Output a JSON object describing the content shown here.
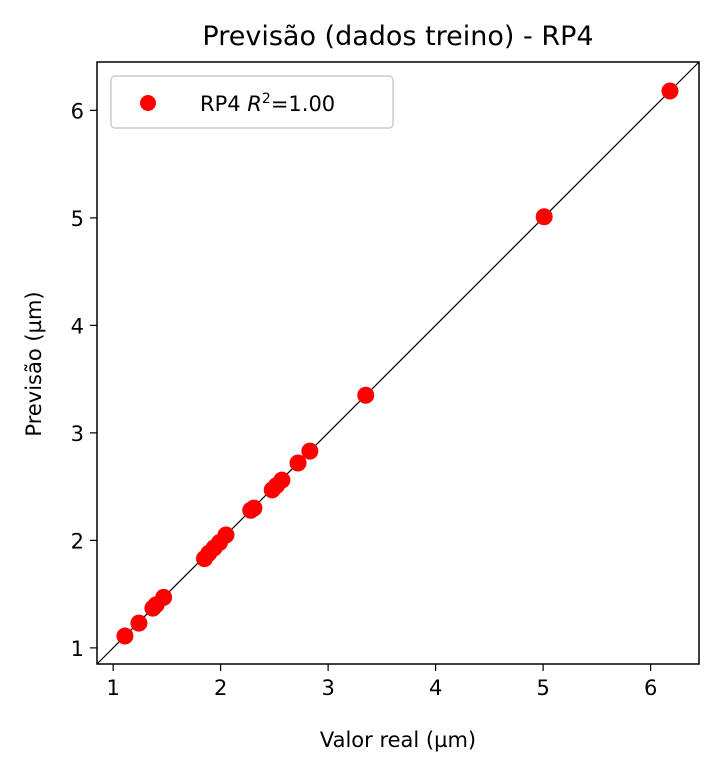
{
  "chart_data": {
    "type": "scatter",
    "title": "Previsão (dados treino) - RP4",
    "xlabel": "Valor real (µm)",
    "ylabel": "Previsão (µm)",
    "xlim": [
      0.85,
      6.45
    ],
    "ylim": [
      0.85,
      6.45
    ],
    "xticks": [
      1,
      2,
      3,
      4,
      5,
      6
    ],
    "yticks": [
      1,
      2,
      3,
      4,
      5,
      6
    ],
    "grid": false,
    "legend": {
      "placement": "top-left",
      "label_prefix": "RP4 ",
      "label_var": "R",
      "label_sup": "2",
      "label_suffix": "=1.00"
    },
    "reference_line": "y = x",
    "series": [
      {
        "name": "RP4 R²=1.00",
        "color": "#ff0000",
        "points": [
          [
            1.11,
            1.11
          ],
          [
            1.24,
            1.23
          ],
          [
            1.37,
            1.37
          ],
          [
            1.4,
            1.4
          ],
          [
            1.47,
            1.47
          ],
          [
            1.85,
            1.83
          ],
          [
            1.89,
            1.88
          ],
          [
            1.94,
            1.93
          ],
          [
            1.99,
            1.98
          ],
          [
            2.05,
            2.05
          ],
          [
            2.28,
            2.28
          ],
          [
            2.31,
            2.3
          ],
          [
            2.48,
            2.47
          ],
          [
            2.52,
            2.51
          ],
          [
            2.57,
            2.56
          ],
          [
            2.72,
            2.72
          ],
          [
            2.83,
            2.83
          ],
          [
            3.35,
            3.35
          ],
          [
            5.01,
            5.01
          ],
          [
            6.18,
            6.18
          ]
        ]
      }
    ]
  }
}
